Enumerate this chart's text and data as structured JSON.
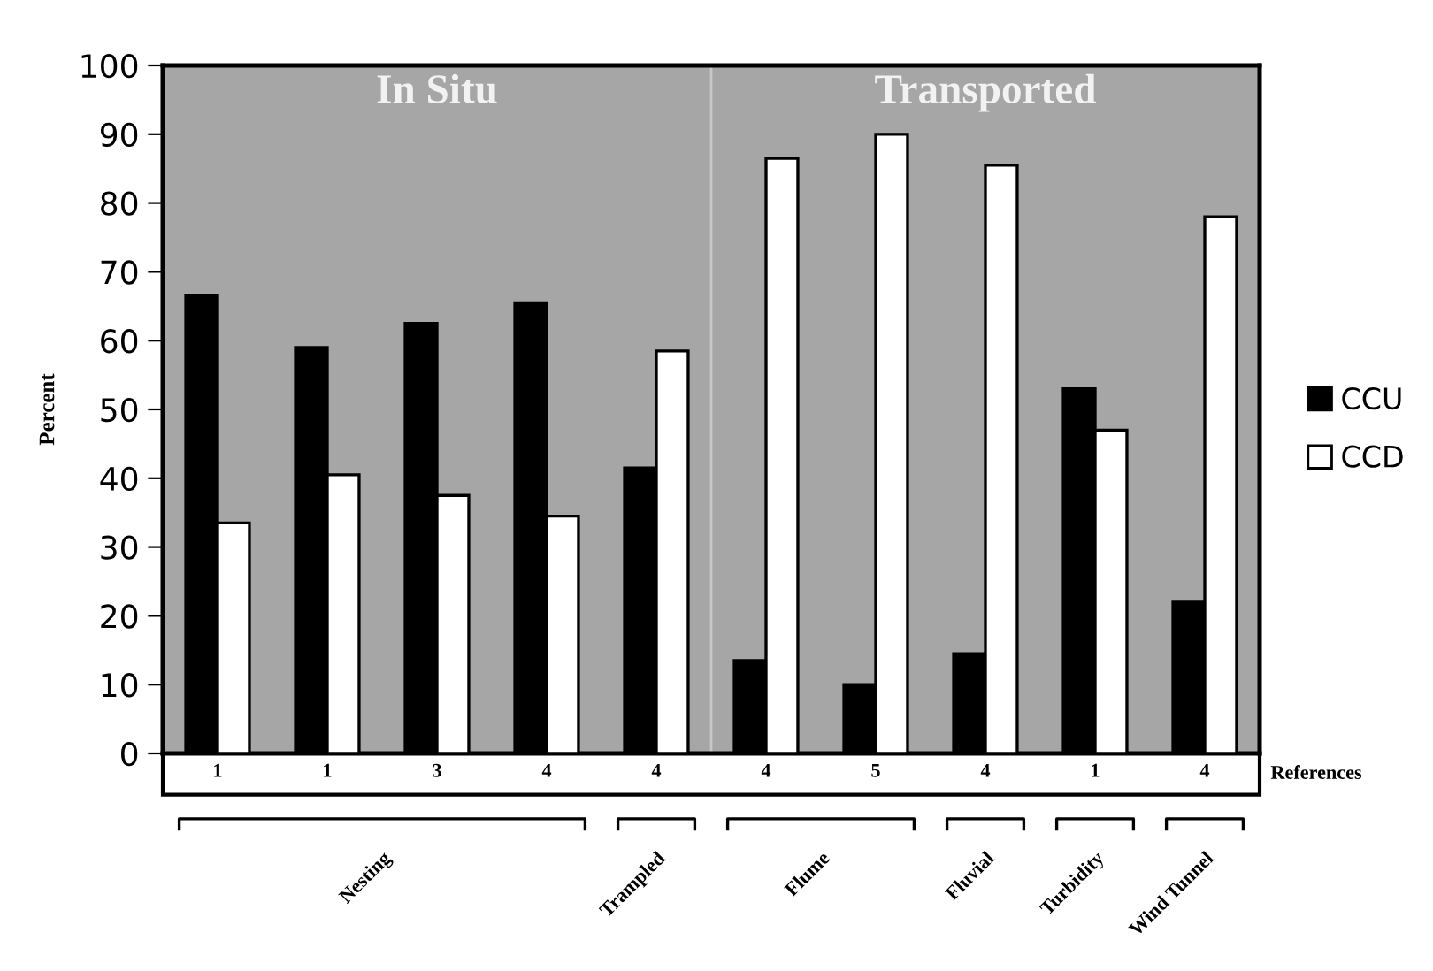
{
  "chart_data": {
    "type": "bar",
    "categories": [
      "1",
      "1",
      "3",
      "4",
      "4",
      "4",
      "5",
      "4",
      "1",
      "4"
    ],
    "series": [
      {
        "name": "CCU",
        "color": "#000000",
        "values": [
          66.5,
          59,
          62.5,
          65.5,
          41.5,
          13.5,
          10,
          14.5,
          53,
          22
        ]
      },
      {
        "name": "CCD",
        "color": "#ffffff",
        "values": [
          33.5,
          40.5,
          37.5,
          34.5,
          58.5,
          86.5,
          90,
          85.5,
          47,
          78
        ]
      }
    ],
    "ylabel": "Percent",
    "xlabel": "References",
    "ylim": [
      0,
      100
    ],
    "yticks": [
      0,
      10,
      20,
      30,
      40,
      50,
      60,
      70,
      80,
      90,
      100
    ],
    "annotations": [
      "In Situ",
      "Transported",
      "Nesting",
      "Trampled",
      "Flume",
      "Fluvial",
      "Turbidity",
      "Wind Tunnel"
    ],
    "grid": false,
    "legend": "right"
  }
}
